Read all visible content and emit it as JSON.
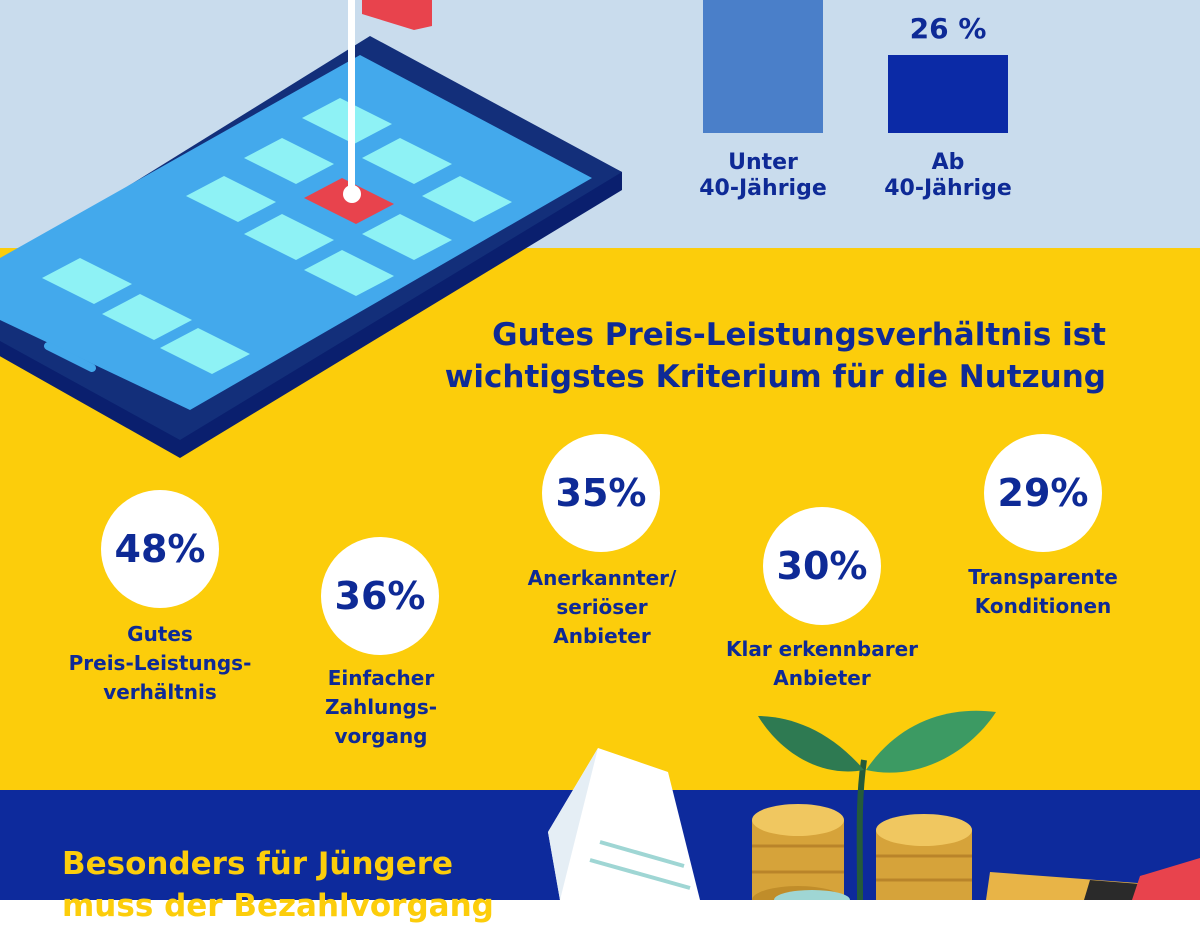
{
  "chart_data": [
    {
      "type": "bar",
      "categories": [
        "Unter 40-Jährige",
        "Ab 40-Jährige"
      ],
      "category_lines": [
        [
          "Unter",
          "40-Jährige"
        ],
        [
          "Ab",
          "40-Jährige"
        ]
      ],
      "values": [
        null,
        26
      ],
      "value_labels": [
        "",
        "26 %"
      ],
      "colors": [
        "#4a7fc9",
        "#0b2aa6"
      ],
      "title": "",
      "xlabel": "",
      "ylabel": "",
      "grid": false
    },
    {
      "type": "table",
      "title": "Gutes Preis-Leistungsverhältnis ist wichtigstes Kriterium für die Nutzung",
      "title_lines": [
        "Gutes Preis-Leistungsverhältnis ist",
        "wichtigstes Kriterium für die Nutzung"
      ],
      "items": [
        {
          "value": 48,
          "value_label": "48%",
          "label_lines": [
            "Gutes",
            "Preis-Leistungs-",
            "verhältnis"
          ]
        },
        {
          "value": 36,
          "value_label": "36%",
          "label_lines": [
            "Einfacher",
            "Zahlungs-",
            "vorgang"
          ]
        },
        {
          "value": 35,
          "value_label": "35%",
          "label_lines": [
            "Anerkannter/",
            "seriöser",
            "Anbieter"
          ]
        },
        {
          "value": 30,
          "value_label": "30%",
          "label_lines": [
            "Klar erkennbarer",
            "Anbieter"
          ]
        },
        {
          "value": 29,
          "value_label": "29%",
          "label_lines": [
            "Transparente",
            "Konditionen"
          ]
        }
      ]
    }
  ],
  "bottom": {
    "title_lines": [
      "Besonders für Jüngere",
      "muss der Bezahlvorgang"
    ]
  },
  "colors": {
    "top_band": "#c9dced",
    "middle_band": "#fccd0b",
    "bottom_band": "#0d2a9c",
    "text_blue": "#0e2a96",
    "text_yellow": "#fccd0b"
  },
  "icons": [
    "smartphone-illustration",
    "flag-icon",
    "plant-icon",
    "coin-stack-icon",
    "paper-document-icon",
    "credit-card-icon"
  ]
}
